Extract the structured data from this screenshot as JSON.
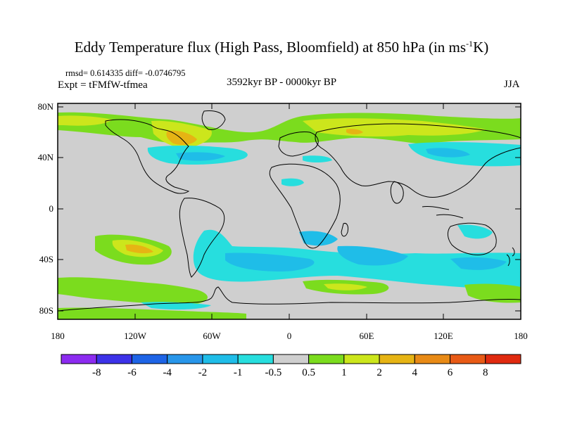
{
  "title": {
    "main": "Eddy Temperature flux (High Pass, Bloomfield) at 850 hPa (in ms",
    "sup": "-1",
    "tail": "K)"
  },
  "stats": "rmsd= 0.614335 diff= -0.0746795",
  "expt": "Expt = tFMfW-tfmea",
  "period": "3592kyr BP - 0000kyr BP",
  "season": "JJA",
  "lat_labels": [
    "80N",
    "40N",
    "0",
    "40S",
    "80S"
  ],
  "lon_labels": [
    "180",
    "120W",
    "60W",
    "0",
    "60E",
    "120E",
    "180"
  ],
  "colorbar": {
    "labels": [
      "-8",
      "-6",
      "-4",
      "-2",
      "-1",
      "-0.5",
      "0.5",
      "1",
      "2",
      "4",
      "6",
      "8"
    ],
    "colors": [
      "#8c2bf0",
      "#3c32e8",
      "#1e64e6",
      "#2896ea",
      "#1fbde8",
      "#27dede",
      "#cfcfcf",
      "#7bdc1e",
      "#cce61c",
      "#e6b414",
      "#e88a16",
      "#e85a16",
      "#e02a0f"
    ]
  },
  "map_colors": {
    "background": "#cfcfcf",
    "coast": "#000000"
  }
}
